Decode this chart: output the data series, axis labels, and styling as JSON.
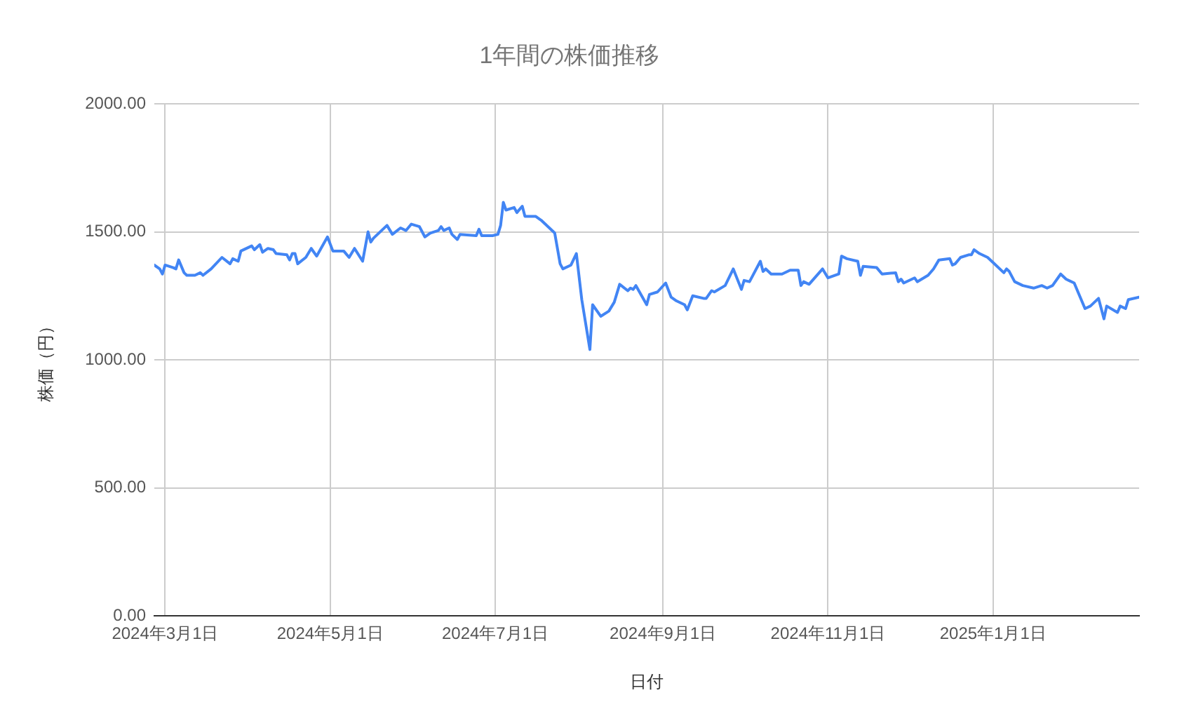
{
  "chart_data": {
    "type": "line",
    "title": "1年間の株価推移",
    "xlabel": "日付",
    "ylabel": "株価（円）",
    "x": [
      "2024-02-26",
      "2024-02-28",
      "2024-02-29",
      "2024-03-01",
      "2024-03-04",
      "2024-03-05",
      "2024-03-06",
      "2024-03-08",
      "2024-03-09",
      "2024-03-12",
      "2024-03-14",
      "2024-03-15",
      "2024-03-18",
      "2024-03-22",
      "2024-03-25",
      "2024-03-26",
      "2024-03-28",
      "2024-03-29",
      "2024-04-02",
      "2024-04-03",
      "2024-04-05",
      "2024-04-06",
      "2024-04-08",
      "2024-04-10",
      "2024-04-11",
      "2024-04-15",
      "2024-04-16",
      "2024-04-17",
      "2024-04-18",
      "2024-04-19",
      "2024-04-22",
      "2024-04-24",
      "2024-04-26",
      "2024-04-30",
      "2024-05-02",
      "2024-05-06",
      "2024-05-08",
      "2024-05-10",
      "2024-05-13",
      "2024-05-15",
      "2024-05-16",
      "2024-05-17",
      "2024-05-22",
      "2024-05-24",
      "2024-05-27",
      "2024-05-29",
      "2024-05-31",
      "2024-06-03",
      "2024-06-05",
      "2024-06-07",
      "2024-06-10",
      "2024-06-11",
      "2024-06-12",
      "2024-06-14",
      "2024-06-15",
      "2024-06-17",
      "2024-06-18",
      "2024-06-24",
      "2024-06-25",
      "2024-06-26",
      "2024-06-30",
      "2024-07-02",
      "2024-07-03",
      "2024-07-04",
      "2024-07-05",
      "2024-07-08",
      "2024-07-09",
      "2024-07-11",
      "2024-07-12",
      "2024-07-16",
      "2024-07-18",
      "2024-07-23",
      "2024-07-25",
      "2024-07-26",
      "2024-07-29",
      "2024-07-31",
      "2024-08-02",
      "2024-08-05",
      "2024-08-06",
      "2024-08-09",
      "2024-08-12",
      "2024-08-14",
      "2024-08-16",
      "2024-08-19",
      "2024-08-20",
      "2024-08-21",
      "2024-08-22",
      "2024-08-26",
      "2024-08-27",
      "2024-08-30",
      "2024-09-02",
      "2024-09-04",
      "2024-09-06",
      "2024-09-09",
      "2024-09-10",
      "2024-09-12",
      "2024-09-16",
      "2024-09-17",
      "2024-09-19",
      "2024-09-20",
      "2024-09-24",
      "2024-09-27",
      "2024-09-30",
      "2024-10-01",
      "2024-10-03",
      "2024-10-07",
      "2024-10-08",
      "2024-10-09",
      "2024-10-11",
      "2024-10-15",
      "2024-10-18",
      "2024-10-21",
      "2024-10-22",
      "2024-10-23",
      "2024-10-25",
      "2024-10-30",
      "2024-11-01",
      "2024-11-05",
      "2024-11-06",
      "2024-11-08",
      "2024-11-12",
      "2024-11-13",
      "2024-11-14",
      "2024-11-19",
      "2024-11-21",
      "2024-11-26",
      "2024-11-27",
      "2024-11-28",
      "2024-11-29",
      "2024-12-03",
      "2024-12-04",
      "2024-12-08",
      "2024-12-10",
      "2024-12-12",
      "2024-12-16",
      "2024-12-17",
      "2024-12-18",
      "2024-12-20",
      "2024-12-23",
      "2024-12-24",
      "2024-12-25",
      "2024-12-27",
      "2024-12-30",
      "2025-01-01",
      "2025-01-05",
      "2025-01-06",
      "2025-01-07",
      "2025-01-09",
      "2025-01-12",
      "2025-01-16",
      "2025-01-19",
      "2025-01-21",
      "2025-01-23",
      "2025-01-26",
      "2025-01-28",
      "2025-01-31",
      "2025-02-02",
      "2025-02-04",
      "2025-02-06",
      "2025-02-09",
      "2025-02-10",
      "2025-02-11",
      "2025-02-12",
      "2025-02-16",
      "2025-02-17",
      "2025-02-19",
      "2025-02-20",
      "2025-02-24"
    ],
    "values": [
      1370,
      1355,
      1335,
      1370,
      1360,
      1355,
      1390,
      1340,
      1330,
      1330,
      1340,
      1330,
      1355,
      1400,
      1375,
      1395,
      1385,
      1425,
      1445,
      1430,
      1450,
      1420,
      1435,
      1430,
      1415,
      1410,
      1390,
      1415,
      1415,
      1375,
      1400,
      1435,
      1405,
      1480,
      1425,
      1425,
      1400,
      1435,
      1385,
      1500,
      1460,
      1475,
      1525,
      1490,
      1515,
      1505,
      1530,
      1520,
      1480,
      1495,
      1505,
      1520,
      1505,
      1515,
      1490,
      1470,
      1490,
      1485,
      1510,
      1485,
      1485,
      1490,
      1525,
      1615,
      1585,
      1595,
      1575,
      1600,
      1560,
      1560,
      1545,
      1495,
      1375,
      1355,
      1370,
      1415,
      1235,
      1040,
      1215,
      1170,
      1190,
      1225,
      1295,
      1270,
      1280,
      1275,
      1290,
      1215,
      1255,
      1265,
      1300,
      1245,
      1230,
      1215,
      1195,
      1250,
      1240,
      1240,
      1270,
      1265,
      1290,
      1355,
      1275,
      1310,
      1305,
      1385,
      1345,
      1355,
      1335,
      1335,
      1350,
      1350,
      1290,
      1305,
      1295,
      1355,
      1320,
      1335,
      1405,
      1395,
      1385,
      1330,
      1365,
      1360,
      1335,
      1340,
      1305,
      1315,
      1300,
      1320,
      1305,
      1330,
      1355,
      1390,
      1395,
      1370,
      1375,
      1400,
      1410,
      1410,
      1430,
      1415,
      1400,
      1380,
      1340,
      1355,
      1345,
      1305,
      1290,
      1280,
      1290,
      1280,
      1290,
      1335,
      1315,
      1300,
      1250,
      1200,
      1210,
      1240,
      1200,
      1160,
      1210,
      1185,
      1210,
      1200,
      1235,
      1245
    ],
    "color": "#4285f4",
    "xlim": [
      "2024-02-26",
      "2025-02-24"
    ],
    "xticks": [
      {
        "value": "2024-03-01",
        "label": "2024年3月1日"
      },
      {
        "value": "2024-05-01",
        "label": "2024年5月1日"
      },
      {
        "value": "2024-07-01",
        "label": "2024年7月1日"
      },
      {
        "value": "2024-09-01",
        "label": "2024年9月1日"
      },
      {
        "value": "2024-11-01",
        "label": "2024年11月1日"
      },
      {
        "value": "2025-01-01",
        "label": "2025年1月1日"
      }
    ],
    "ylim": [
      0,
      2000
    ],
    "yticks": [
      {
        "value": 0,
        "label": "0.00"
      },
      {
        "value": 500,
        "label": "500.00"
      },
      {
        "value": 1000,
        "label": "1000.00"
      },
      {
        "value": 1500,
        "label": "1500.00"
      },
      {
        "value": 2000,
        "label": "2000.00"
      }
    ],
    "grid": true,
    "marker": "none"
  }
}
